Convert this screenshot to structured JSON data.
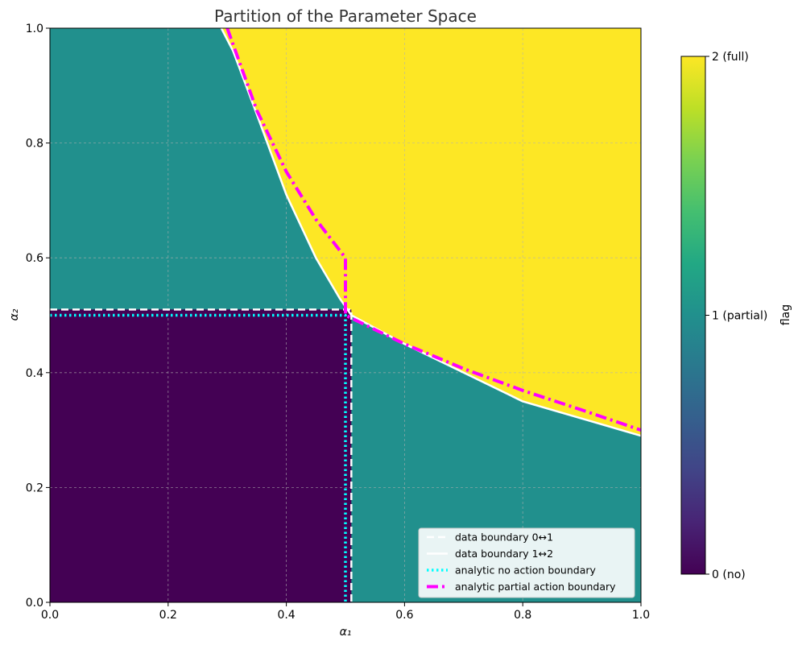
{
  "chart_data": {
    "type": "heatmap",
    "title": "Partition of the Parameter Space",
    "xlabel": "α₁",
    "ylabel": "α₂",
    "xlim": [
      0,
      1
    ],
    "ylim": [
      0,
      1
    ],
    "x_ticks": [
      "0.0",
      "0.2",
      "0.4",
      "0.6",
      "0.8",
      "1.0"
    ],
    "y_ticks": [
      "0.0",
      "0.2",
      "0.4",
      "0.6",
      "0.8",
      "1.0"
    ],
    "grid": true,
    "colorbar": {
      "label": "flag",
      "ticks": [
        {
          "value": 0,
          "label": "0 (no)"
        },
        {
          "value": 1,
          "label": "1 (partial)"
        },
        {
          "value": 2,
          "label": "2 (full)"
        }
      ],
      "colormap": "viridis"
    },
    "regions": [
      {
        "flag": 0,
        "description": "α₁ < 0.51 and α₂ < 0.51",
        "color": "#440154"
      },
      {
        "flag": 1,
        "color": "#21908d"
      },
      {
        "flag": 2,
        "color": "#fde725"
      }
    ],
    "series": [
      {
        "name": "data boundary 0↔1",
        "style": "dashed",
        "color": "#ffffff",
        "points": [
          [
            0,
            0.51
          ],
          [
            0.51,
            0.51
          ],
          [
            0.51,
            0
          ]
        ]
      },
      {
        "name": "data boundary 1↔2",
        "style": "solid",
        "color": "#ffffff",
        "points": [
          [
            0.29,
            1.0
          ],
          [
            0.31,
            0.96
          ],
          [
            0.35,
            0.85
          ],
          [
            0.4,
            0.71
          ],
          [
            0.45,
            0.6
          ],
          [
            0.49,
            0.53
          ],
          [
            0.51,
            0.5
          ],
          [
            0.6,
            0.45
          ],
          [
            0.7,
            0.4
          ],
          [
            0.8,
            0.35
          ],
          [
            0.9,
            0.32
          ],
          [
            1.0,
            0.29
          ]
        ]
      },
      {
        "name": "analytic no action boundary",
        "style": "dotted",
        "color": "#00ffff",
        "points": [
          [
            0,
            0.5
          ],
          [
            0.5,
            0.5
          ],
          [
            0.5,
            0
          ]
        ]
      },
      {
        "name": "analytic partial action boundary",
        "style": "dashdot",
        "color": "#ff00ff",
        "points": [
          [
            0.3,
            1.0
          ],
          [
            0.35,
            0.857
          ],
          [
            0.4,
            0.75
          ],
          [
            0.45,
            0.667
          ],
          [
            0.5,
            0.6
          ],
          [
            0.5,
            0.5
          ],
          [
            0.6,
            0.45
          ],
          [
            0.7,
            0.407
          ],
          [
            0.8,
            0.369
          ],
          [
            0.9,
            0.335
          ],
          [
            1.0,
            0.3
          ]
        ]
      }
    ],
    "legend": {
      "position": "lower-right",
      "entries": [
        "data boundary 0↔1",
        "data boundary 1↔2",
        "analytic no action boundary",
        "analytic partial action boundary"
      ]
    }
  }
}
